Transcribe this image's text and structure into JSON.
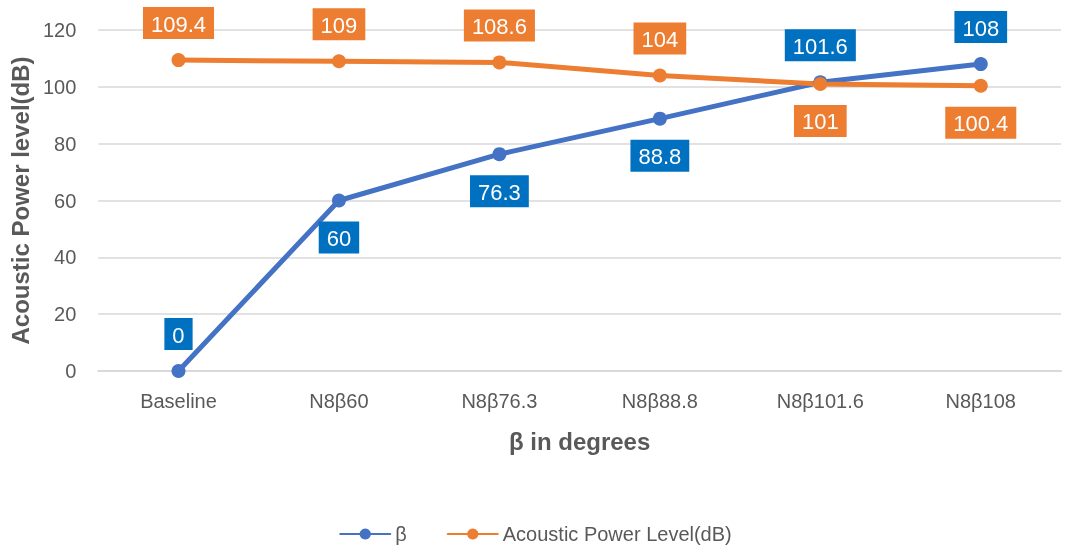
{
  "chart_data": {
    "type": "line",
    "xlabel": "β in degrees",
    "ylabel": "Acoustic Power level(dB)",
    "categories": [
      "Baseline",
      "N8β60",
      "N8β76.3",
      "N8β88.8",
      "N8β101.6",
      "N8β108"
    ],
    "series": [
      {
        "name": "β",
        "color": "#4472c4",
        "values": [
          0,
          60,
          76.3,
          88.8,
          101.6,
          108
        ]
      },
      {
        "name": "Acoustic Power Level(dB)",
        "color": "#ed7d31",
        "values": [
          109.4,
          109,
          108.6,
          104,
          101,
          100.4
        ]
      }
    ],
    "ylim": [
      0,
      120
    ],
    "yticks": [
      0,
      20,
      40,
      60,
      80,
      100,
      120
    ],
    "grid": "y",
    "legend": "bottom",
    "marker": "circle",
    "line_style": "solid",
    "data_labels": true
  }
}
